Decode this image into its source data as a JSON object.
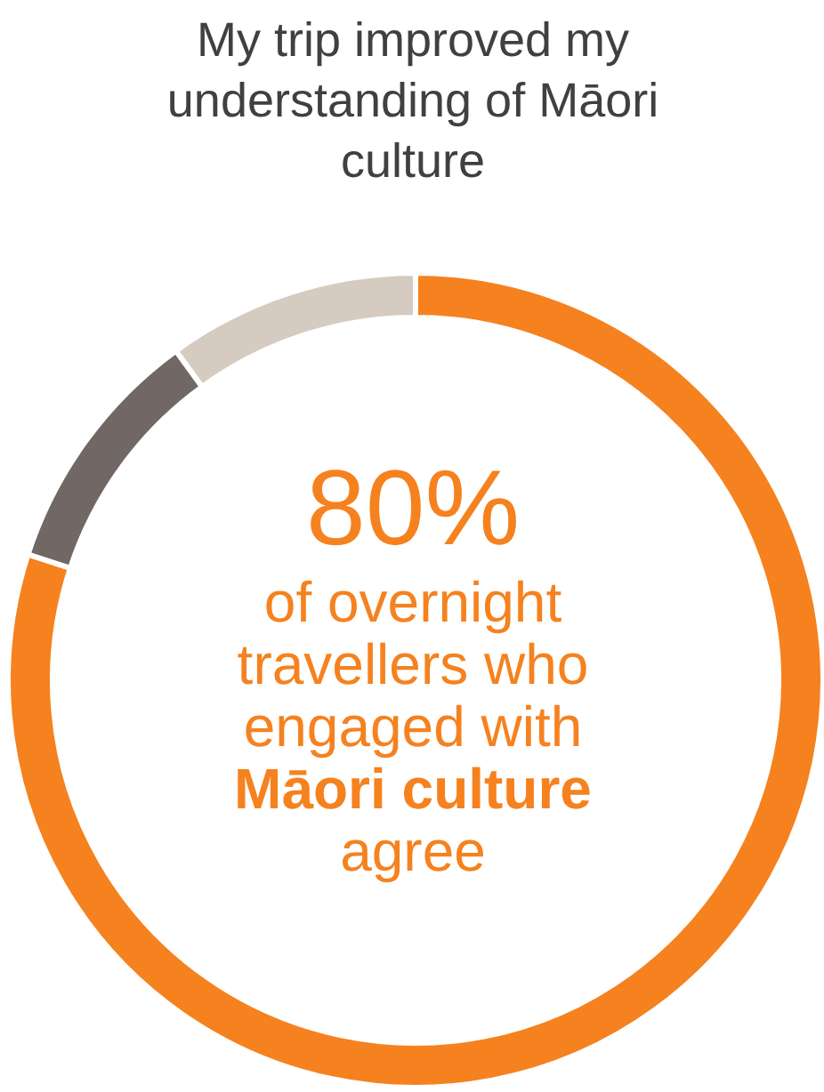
{
  "chart_data": {
    "type": "donut",
    "title": "My trip improved my understanding of Māori culture",
    "categories": [
      null,
      null,
      null
    ],
    "values": [
      80,
      10,
      10
    ],
    "colors": [
      "#f5821f",
      "#716764",
      "#d5cbc0"
    ],
    "annotations": [
      "80%",
      "of overnight",
      "travellers who",
      "engaged with",
      "Māori culture",
      "agree"
    ]
  }
}
